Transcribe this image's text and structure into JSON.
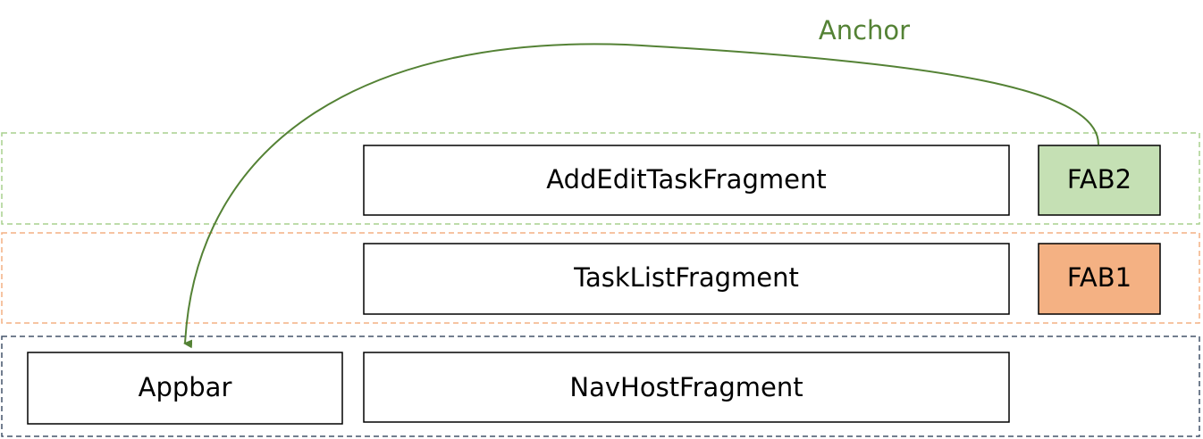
{
  "annotation": "Anchor",
  "nodes": [
    {
      "label": "AddEditTaskFragment"
    },
    {
      "label": "FAB2"
    },
    {
      "label": "TaskListFragment"
    },
    {
      "label": "FAB1"
    },
    {
      "label": "Appbar"
    },
    {
      "label": "NavHostFragment"
    }
  ]
}
